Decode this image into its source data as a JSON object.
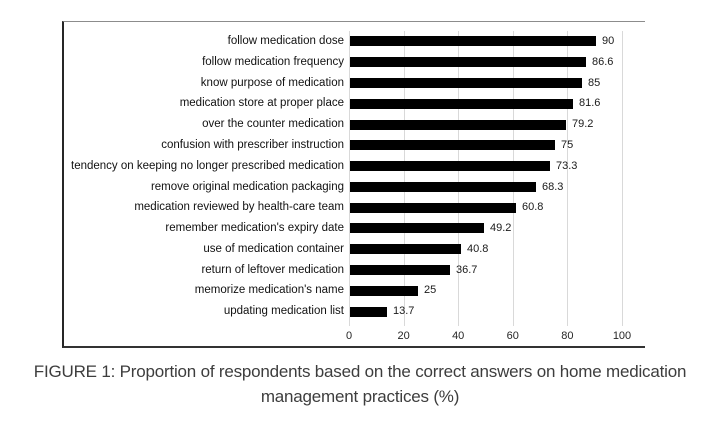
{
  "figure": {
    "caption_lines": [
      "FIGURE 1: Proportion of respondents based on the correct answers on home medication",
      "management practices (%)"
    ]
  },
  "chart_data": {
    "type": "bar",
    "orientation": "horizontal",
    "title": "",
    "xlabel": "",
    "ylabel": "",
    "categories": [
      "follow medication dose",
      "follow medication frequency",
      "know purpose of medication",
      "medication store at proper place",
      "over the counter medication",
      "confusion with prescriber instruction",
      "tendency on keeping no longer prescribed medication",
      "remove original medication packaging",
      "medication reviewed by health-care team",
      "remember medication's expiry date",
      "use of medication container",
      "return of leftover medication",
      "memorize medication's name",
      "updating medication list"
    ],
    "values": [
      90,
      86.6,
      85,
      81.6,
      79.2,
      75,
      73.3,
      68.3,
      60.8,
      49.2,
      40.8,
      36.7,
      25,
      13.7
    ],
    "value_labels": [
      "90",
      "86.6",
      "85",
      "81.6",
      "79.2",
      "75",
      "73.3",
      "68.3",
      "60.8",
      "49.2",
      "40.8",
      "36.7",
      "25",
      "13.7"
    ],
    "xlim": [
      0,
      100
    ],
    "x_ticks": [
      0,
      20,
      40,
      60,
      80,
      100
    ],
    "grid": true,
    "legend": false,
    "bar_color": "#000000",
    "gridline_color": "#d9d9d9"
  }
}
